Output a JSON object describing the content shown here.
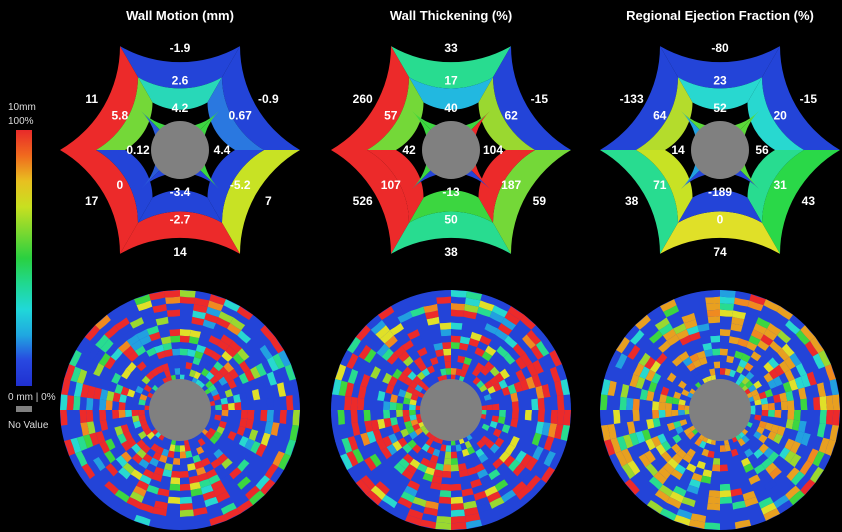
{
  "legend": {
    "top_label_1": "10mm",
    "top_label_2": "100%",
    "bottom_label": "0 mm | 0%",
    "novalue_label": "No Value",
    "novalue_color": "#808080",
    "scale_stops": [
      "#e82a2a",
      "#f06a1e",
      "#e8c020",
      "#c8e020",
      "#7ad830",
      "#2ad040",
      "#20d890",
      "#20d8d8",
      "#20a8e0",
      "#2848e0",
      "#2030d0"
    ]
  },
  "chart_data": [
    {
      "type": "heatmap",
      "title": "Wall Motion (mm)",
      "layout": "AHA 17-segment bullseye",
      "units": "mm",
      "segments": {
        "basal": [
          {
            "v": "-1.9",
            "c": "#2344d8"
          },
          {
            "v": "-0.9",
            "c": "#2344d8"
          },
          {
            "v": "7",
            "c": "#c8e224"
          },
          {
            "v": "14",
            "c": "#ec2a2a"
          },
          {
            "v": "17",
            "c": "#ec2a2a"
          },
          {
            "v": "11",
            "c": "#ec2a2a"
          }
        ],
        "mid": [
          {
            "v": "2.6",
            "c": "#28d8b8"
          },
          {
            "v": "0.67",
            "c": "#2a78e0"
          },
          {
            "v": "-5.2",
            "c": "#2344d8"
          },
          {
            "v": "-2.7",
            "c": "#2344d8"
          },
          {
            "v": "0",
            "c": "#2344d8"
          },
          {
            "v": "5.8",
            "c": "#74d838"
          }
        ],
        "apical": [
          {
            "v": "4.2",
            "c": "#3cd640"
          },
          {
            "v": "4.4",
            "c": "#3cd640"
          },
          {
            "v": "-3.4",
            "c": "#2344d8"
          },
          {
            "v": "0.12",
            "c": "#2a5ad8"
          }
        ],
        "apex_color": "#808080"
      },
      "lower_map": {
        "base": "#2344d8",
        "dominant": "#ec2a2a"
      }
    },
    {
      "type": "heatmap",
      "title": "Wall Thickening (%)",
      "layout": "AHA 17-segment bullseye",
      "units": "%",
      "segments": {
        "basal": [
          {
            "v": "33",
            "c": "#28dc90"
          },
          {
            "v": "-15",
            "c": "#2344d8"
          },
          {
            "v": "59",
            "c": "#74d838"
          },
          {
            "v": "38",
            "c": "#28dc90"
          },
          {
            "v": "526",
            "c": "#ec2a2a"
          },
          {
            "v": "260",
            "c": "#ec2a2a"
          }
        ],
        "mid": [
          {
            "v": "17",
            "c": "#22b8e0"
          },
          {
            "v": "62",
            "c": "#9ad830"
          },
          {
            "v": "187",
            "c": "#ec2a2a"
          },
          {
            "v": "50",
            "c": "#3cd640"
          },
          {
            "v": "107",
            "c": "#ec2a2a"
          },
          {
            "v": "57",
            "c": "#74d838"
          }
        ],
        "apical": [
          {
            "v": "40",
            "c": "#3cd640"
          },
          {
            "v": "104",
            "c": "#ec2a2a"
          },
          {
            "v": "-13",
            "c": "#2344d8"
          },
          {
            "v": "42",
            "c": "#3cd640"
          }
        ],
        "apex_color": "#808080"
      },
      "lower_map": {
        "base": "#2344d8",
        "dominant": "#ec2a2a"
      }
    },
    {
      "type": "heatmap",
      "title": "Regional Ejection Fraction (%)",
      "layout": "AHA 17-segment bullseye",
      "units": "%",
      "segments": {
        "basal": [
          {
            "v": "-80",
            "c": "#2344d8"
          },
          {
            "v": "-15",
            "c": "#2344d8"
          },
          {
            "v": "43",
            "c": "#2ad848"
          },
          {
            "v": "74",
            "c": "#e0e028"
          },
          {
            "v": "38",
            "c": "#28dc90"
          },
          {
            "v": "-133",
            "c": "#2344d8"
          }
        ],
        "mid": [
          {
            "v": "23",
            "c": "#28d8d0"
          },
          {
            "v": "20",
            "c": "#28d8d0"
          },
          {
            "v": "31",
            "c": "#28dc90"
          },
          {
            "v": "0",
            "c": "#2344d8"
          },
          {
            "v": "71",
            "c": "#c8e224"
          },
          {
            "v": "64",
            "c": "#b4dc2c"
          }
        ],
        "apical": [
          {
            "v": "52",
            "c": "#5ad838"
          },
          {
            "v": "56",
            "c": "#5ad838"
          },
          {
            "v": "-189",
            "c": "#2344d8"
          },
          {
            "v": "14",
            "c": "#22a0e0"
          }
        ],
        "apex_color": "#808080"
      },
      "lower_map": {
        "base": "#2344d8",
        "dominant": "#e8a020"
      }
    }
  ]
}
